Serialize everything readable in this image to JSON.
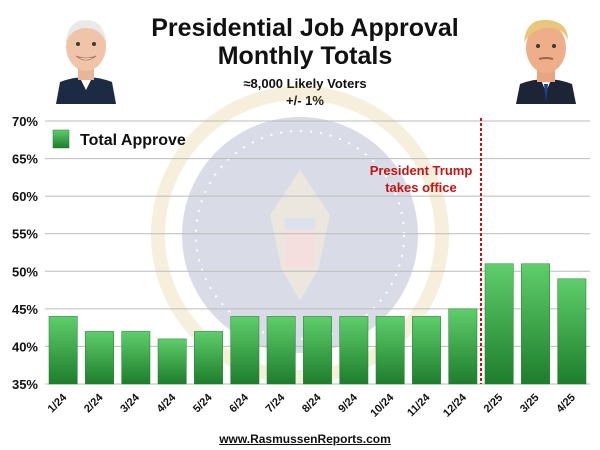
{
  "header": {
    "title_line1": "Presidential Job Approval",
    "title_line2": "Monthly Totals",
    "subtitle_line1": "≈8,000 Likely Voters",
    "subtitle_line2": "+/- 1%"
  },
  "portraits": {
    "left": "biden-portrait",
    "right": "trump-portrait"
  },
  "footer": {
    "source": "www.RasmussenReports.com"
  },
  "colors": {
    "bar_top": "#5fce6b",
    "bar_bottom": "#1e7d2c",
    "grid": "#bbbbbb",
    "marker": "#c41414"
  },
  "chart_data": {
    "type": "bar",
    "title": "Presidential Job Approval Monthly Totals",
    "categories": [
      "1/24",
      "2/24",
      "3/24",
      "4/24",
      "5/24",
      "6/24",
      "7/24",
      "8/24",
      "9/24",
      "10/24",
      "11/24",
      "12/24",
      "2/25",
      "3/25",
      "4/25"
    ],
    "series": [
      {
        "name": "Total Approve",
        "values": [
          44,
          42,
          42,
          41,
          42,
          44,
          44,
          44,
          44,
          44,
          44,
          45,
          51,
          51,
          49
        ]
      }
    ],
    "ylim": [
      35,
      70
    ],
    "yticks": [
      "35%",
      "40%",
      "45%",
      "50%",
      "55%",
      "60%",
      "65%",
      "70%"
    ],
    "ytick_values": [
      35,
      40,
      45,
      50,
      55,
      60,
      65,
      70
    ],
    "grid": true,
    "legend_position": "top-left",
    "annotation": {
      "line1": "President Trump",
      "line2": "takes office",
      "between": [
        "12/24",
        "2/25"
      ]
    }
  }
}
